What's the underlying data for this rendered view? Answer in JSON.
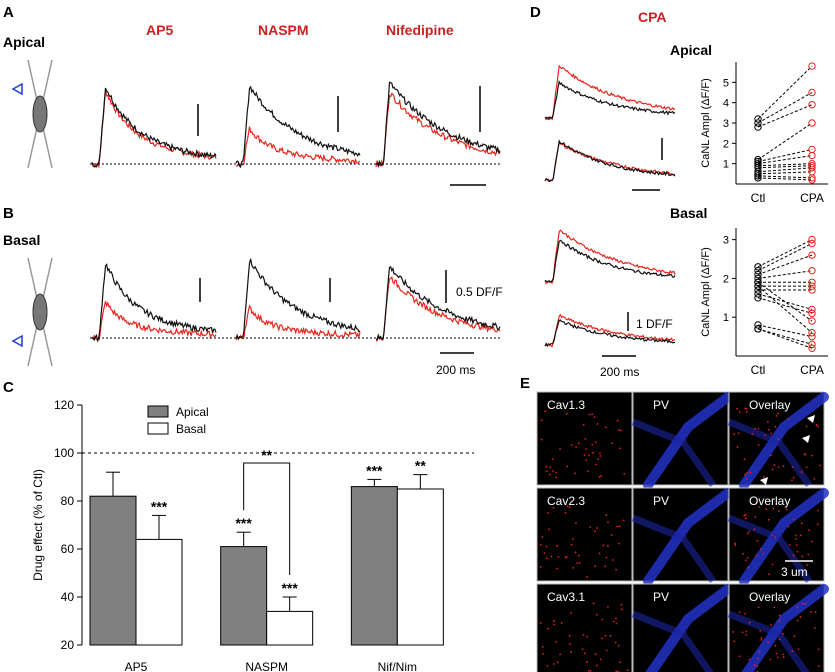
{
  "panels": {
    "A": {
      "label": "A",
      "row_label": "Apical"
    },
    "B": {
      "label": "B",
      "row_label": "Basal"
    },
    "C": {
      "label": "C"
    },
    "D": {
      "label": "D",
      "title": "CPA",
      "apical": "Apical",
      "basal": "Basal"
    },
    "E": {
      "label": "E"
    }
  },
  "drugs": [
    "AP5",
    "NASPM",
    "Nifedipine"
  ],
  "scales": {
    "amplitude": "0.5 DF/F",
    "time": "200 ms",
    "d_amplitude": "1 DF/F",
    "d_time": "200 ms"
  },
  "colors": {
    "control": "#111111",
    "drug": "#e8241c",
    "drug_label": "#cc1f1f",
    "bar_apical": "#808080",
    "bar_basal": "#ffffff",
    "image_bg": "#000000"
  },
  "chart_data": [
    {
      "id": "C",
      "type": "bar",
      "ylabel": "Drug effect (% of Ctl)",
      "ylim": [
        20,
        120
      ],
      "yticks": [
        20,
        40,
        60,
        80,
        100,
        120
      ],
      "reference_line": 100,
      "categories": [
        "AP5",
        "NASPM",
        "Nif/Nim"
      ],
      "series": [
        {
          "name": "Apical",
          "values": [
            82,
            61,
            86
          ],
          "errors": [
            10,
            6,
            3
          ]
        },
        {
          "name": "Basal",
          "values": [
            64,
            34,
            85
          ],
          "errors": [
            10,
            6,
            6
          ]
        }
      ],
      "significance": [
        {
          "category": "AP5",
          "series": "Basal",
          "label": "***"
        },
        {
          "category": "NASPM",
          "series": "Apical",
          "label": "***"
        },
        {
          "category": "NASPM",
          "series": "Basal",
          "label": "***"
        },
        {
          "category": "Nif/Nim",
          "series": "Apical",
          "label": "***"
        },
        {
          "category": "Nif/Nim",
          "series": "Basal",
          "label": "**"
        }
      ],
      "comparison": {
        "label": "**",
        "between": [
          "Apical",
          "Basal"
        ],
        "category": "NASPM"
      },
      "legend": [
        "Apical",
        "Basal"
      ]
    },
    {
      "id": "D-apical",
      "type": "scatter",
      "ylabel": "CaNL Ampl (ΔF/F)",
      "ylim": [
        0,
        6
      ],
      "yticks": [
        1,
        2,
        3,
        4,
        5
      ],
      "xlabels": [
        "Ctl",
        "CPA"
      ],
      "pairs": [
        [
          3.2,
          5.8
        ],
        [
          3.0,
          4.5
        ],
        [
          2.8,
          3.9
        ],
        [
          1.2,
          3.0
        ],
        [
          1.1,
          1.7
        ],
        [
          1.0,
          1.4
        ],
        [
          0.9,
          1.0
        ],
        [
          0.8,
          0.9
        ],
        [
          0.6,
          0.8
        ],
        [
          0.5,
          0.6
        ],
        [
          0.4,
          0.3
        ],
        [
          0.3,
          0.2
        ]
      ]
    },
    {
      "id": "D-basal",
      "type": "scatter",
      "ylabel": "CaNL Ampl (ΔF/F)",
      "ylim": [
        0,
        3.3
      ],
      "yticks": [
        1,
        2,
        3
      ],
      "xlabels": [
        "Ctl",
        "CPA"
      ],
      "pairs": [
        [
          2.3,
          3.0
        ],
        [
          2.2,
          2.9
        ],
        [
          2.1,
          2.6
        ],
        [
          2.0,
          2.2
        ],
        [
          1.9,
          1.9
        ],
        [
          1.8,
          1.8
        ],
        [
          1.7,
          1.7
        ],
        [
          1.6,
          1.2
        ],
        [
          1.5,
          1.1
        ],
        [
          1.9,
          0.9
        ],
        [
          1.8,
          0.6
        ],
        [
          0.8,
          0.5
        ],
        [
          0.7,
          0.3
        ],
        [
          0.7,
          0.2
        ]
      ]
    }
  ],
  "legend": {
    "apical": "Apical",
    "basal": "Basal"
  },
  "comparison_label": "**",
  "imaging": {
    "rows": [
      {
        "channel": "Cav1.3",
        "marker": "PV",
        "overlay": "Overlay"
      },
      {
        "channel": "Cav2.3",
        "marker": "PV",
        "overlay": "Overlay"
      },
      {
        "channel": "Cav3.1",
        "marker": "PV",
        "overlay": "Overlay"
      }
    ],
    "scale": "3 um"
  }
}
